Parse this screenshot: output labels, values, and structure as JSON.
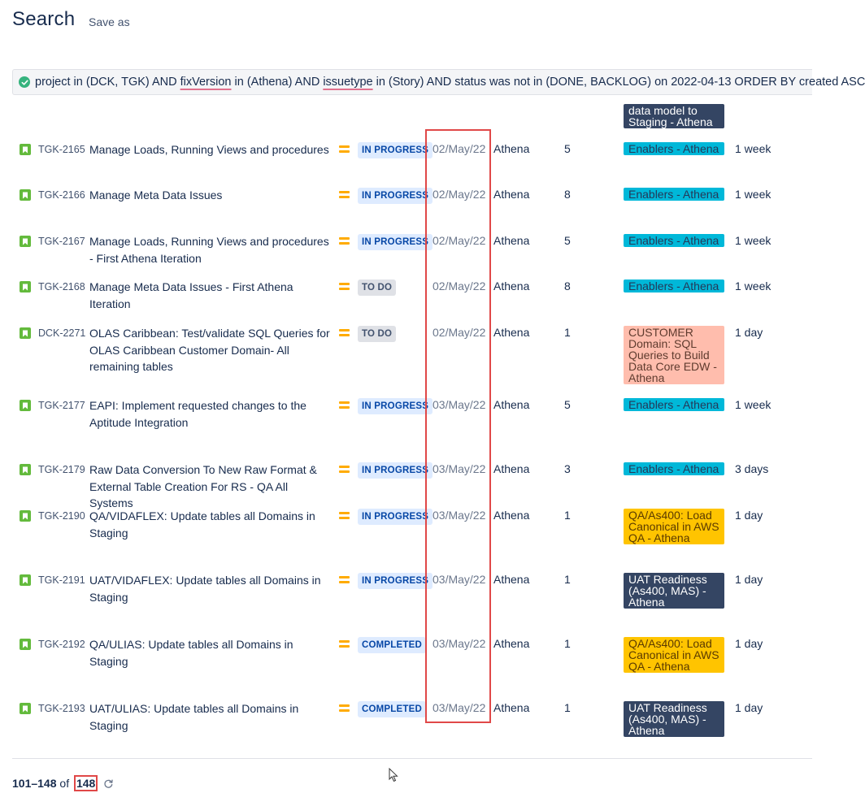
{
  "header": {
    "title": "Search",
    "save_as": "Save as"
  },
  "jql": {
    "seg1": "project in (DCK, TGK) AND ",
    "kw1": "fixVersion",
    "seg2": " in (Athena) AND ",
    "kw2": "issuetype",
    "seg3": " in (Story) AND status was not in (DONE, BACKLOG) on 2022-04-13 ORDER BY created ASC"
  },
  "partial_epic": {
    "label": "data model to Staging - Athena",
    "color": "#344563"
  },
  "rows": [
    {
      "key": "TGK-2165",
      "summary": "Manage Loads, Running Views and procedures",
      "status": "IN PROGRESS",
      "date": "02/May/22",
      "fix": "Athena",
      "points": "5",
      "epic": "Enablers - Athena",
      "estimate": "1 week"
    },
    {
      "key": "TGK-2166",
      "summary": "Manage Meta Data Issues",
      "status": "IN PROGRESS",
      "date": "02/May/22",
      "fix": "Athena",
      "points": "8",
      "epic": "Enablers - Athena",
      "estimate": "1 week"
    },
    {
      "key": "TGK-2167",
      "summary": "Manage Loads, Running Views and procedures - First Athena Iteration",
      "status": "IN PROGRESS",
      "date": "02/May/22",
      "fix": "Athena",
      "points": "5",
      "epic": "Enablers - Athena",
      "estimate": "1 week"
    },
    {
      "key": "TGK-2168",
      "summary": "Manage Meta Data Issues - First Athena Iteration",
      "status": "TO DO",
      "date": "02/May/22",
      "fix": "Athena",
      "points": "8",
      "epic": "Enablers - Athena",
      "estimate": "1 week"
    },
    {
      "key": "DCK-2271",
      "summary": "OLAS Caribbean: Test/validate SQL Queries for OLAS Caribbean Customer Domain- All remaining tables",
      "status": "TO DO",
      "date": "02/May/22",
      "fix": "Athena",
      "points": "1",
      "epic": "CUSTOMER Domain: SQL Queries to Build Data Core EDW - Athena",
      "estimate": "1 day"
    },
    {
      "key": "TGK-2177",
      "summary": "EAPI: Implement requested changes to the Aptitude Integration",
      "status": "IN PROGRESS",
      "date": "03/May/22",
      "fix": "Athena",
      "points": "5",
      "epic": "Enablers - Athena",
      "estimate": "1 week"
    },
    {
      "key": "TGK-2179",
      "summary": "Raw Data Conversion To New Raw Format & External Table Creation For RS - QA All Systems",
      "status": "IN PROGRESS",
      "date": "03/May/22",
      "fix": "Athena",
      "points": "3",
      "epic": "Enablers - Athena",
      "estimate": "3 days"
    },
    {
      "key": "TGK-2190",
      "summary": "QA/VIDAFLEX: Update tables all Domains in Staging",
      "status": "IN PROGRESS",
      "date": "03/May/22",
      "fix": "Athena",
      "points": "1",
      "epic": "QA/As400: Load Canonical in AWS QA - Athena",
      "estimate": "1 day"
    },
    {
      "key": "TGK-2191",
      "summary": "UAT/VIDAFLEX: Update tables all Domains in Staging",
      "status": "IN PROGRESS",
      "date": "03/May/22",
      "fix": "Athena",
      "points": "1",
      "epic": "UAT Readiness (As400, MAS) - Athena",
      "estimate": "1 day"
    },
    {
      "key": "TGK-2192",
      "summary": "QA/ULIAS: Update tables all Domains in Staging",
      "status": "COMPLETED",
      "date": "03/May/22",
      "fix": "Athena",
      "points": "1",
      "epic": "QA/As400: Load Canonical in AWS QA - Athena",
      "estimate": "1 day"
    },
    {
      "key": "TGK-2193",
      "summary": "UAT/ULIAS: Update tables all Domains in Staging",
      "status": "COMPLETED",
      "date": "03/May/22",
      "fix": "Athena",
      "points": "1",
      "epic": "UAT Readiness (As400, MAS) - Athena",
      "estimate": "1 day"
    }
  ],
  "pagination": {
    "range": "101–148",
    "of_label": "of",
    "total": "148"
  },
  "colors": {
    "epic_cyan": "#00b8d9",
    "epic_navy": "#344563",
    "epic_orange": "#ffbdad",
    "epic_yellow": "#ffc400",
    "story_green": "#63ba3c",
    "priority_medium": "#ffab00",
    "highlight_red": "#e04848"
  },
  "icons": {
    "story": "bookmark-icon",
    "priority": "priority-medium-icon",
    "jql_valid": "check-circle-icon",
    "refresh": "refresh-icon"
  }
}
